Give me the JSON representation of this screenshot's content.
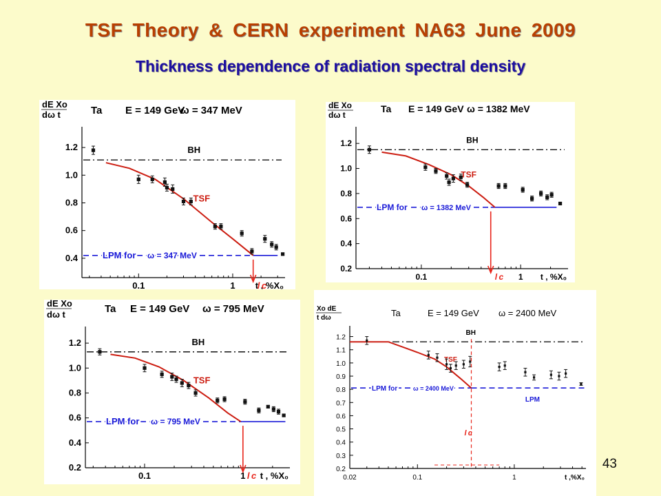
{
  "header": {
    "title": "TSF Theory  &   CERN  experiment   NA63  June 2009",
    "subtitle": "Thickness dependence of radiation spectral density"
  },
  "slide_number": "43",
  "colors": {
    "theory": "#cc1c10",
    "lpm": "#1a1ad8",
    "data": "#111111",
    "bh": "#111111",
    "marker": "#e8241a"
  },
  "chart_data": [
    {
      "type": "scatter",
      "panel": "top-left",
      "header_labels": [
        "Ta",
        "E = 149 GeV",
        "ω = 347 MeV"
      ],
      "ylabel": "dE Xo / dω t",
      "xlabel": "t , %X₀",
      "xscale": "log",
      "xlim": [
        0.025,
        3.6
      ],
      "ylim": [
        0.26,
        1.32
      ],
      "xticks": [
        0.1,
        1
      ],
      "xtick_labels": [
        "0.1",
        "1"
      ],
      "yticks": [
        0.4,
        0.6,
        0.8,
        1.0,
        1.2
      ],
      "ytick_labels": [
        "0.4",
        "0.6",
        "0.8",
        "1.0",
        "1.2"
      ],
      "bh_level": 1.11,
      "bh_label": "BH",
      "lpm": {
        "label": "LPM  for",
        "omega_text": "ω = 347 MeV",
        "level": 0.42
      },
      "tsf": {
        "label": "TSF",
        "points": [
          [
            0.045,
            1.09
          ],
          [
            0.08,
            1.05
          ],
          [
            0.15,
            0.97
          ],
          [
            0.3,
            0.83
          ],
          [
            0.6,
            0.66
          ],
          [
            1.0,
            0.54
          ],
          [
            1.65,
            0.42
          ]
        ],
        "flat_end": 3.0
      },
      "lc": {
        "label": "l c",
        "x": 1.65
      },
      "data": [
        {
          "x": 0.033,
          "y": 1.18,
          "err": 0.03
        },
        {
          "x": 0.1,
          "y": 0.97,
          "err": 0.03
        },
        {
          "x": 0.14,
          "y": 0.97,
          "err": 0.025
        },
        {
          "x": 0.19,
          "y": 0.95,
          "err": 0.03
        },
        {
          "x": 0.2,
          "y": 0.91,
          "err": 0.025
        },
        {
          "x": 0.23,
          "y": 0.9,
          "err": 0.03
        },
        {
          "x": 0.3,
          "y": 0.81,
          "err": 0.025
        },
        {
          "x": 0.36,
          "y": 0.81,
          "err": 0.025
        },
        {
          "x": 0.65,
          "y": 0.63,
          "err": 0.02
        },
        {
          "x": 0.75,
          "y": 0.63,
          "err": 0.02
        },
        {
          "x": 1.25,
          "y": 0.58,
          "err": 0.02
        },
        {
          "x": 1.6,
          "y": 0.45,
          "err": 0.02
        },
        {
          "x": 2.2,
          "y": 0.54,
          "err": 0.025
        },
        {
          "x": 2.6,
          "y": 0.5,
          "err": 0.02
        },
        {
          "x": 2.9,
          "y": 0.48,
          "err": 0.02
        },
        {
          "x": 3.4,
          "y": 0.43,
          "err": 0.008
        }
      ]
    },
    {
      "type": "scatter",
      "panel": "top-right",
      "header_labels": [
        "Ta",
        "E = 149 GeV",
        "ω = 1382 MeV"
      ],
      "ylabel": "dE Xo / dω t",
      "xlabel": "t , %X₀",
      "xscale": "log",
      "xlim": [
        0.022,
        3.0
      ],
      "ylim": [
        0.2,
        1.3
      ],
      "xticks": [
        0.1,
        1
      ],
      "xtick_labels": [
        "0.1",
        "1"
      ],
      "yticks": [
        0.2,
        0.4,
        0.6,
        0.8,
        1.0,
        1.2
      ],
      "ytick_labels": [
        "0.2",
        "0.4",
        "0.6",
        "0.8",
        "1.0",
        "1.2"
      ],
      "bh_level": 1.15,
      "bh_label": "BH",
      "lpm": {
        "label": "LPM  for",
        "omega_text": "ω = 1382 MeV",
        "level": 0.69
      },
      "tsf": {
        "label": "TSF",
        "points": [
          [
            0.04,
            1.13
          ],
          [
            0.07,
            1.1
          ],
          [
            0.12,
            1.03
          ],
          [
            0.2,
            0.95
          ],
          [
            0.3,
            0.86
          ],
          [
            0.42,
            0.77
          ],
          [
            0.55,
            0.69
          ]
        ],
        "flat_end": 2.3
      },
      "lc": {
        "label": "l c",
        "x": 0.5
      },
      "data": [
        {
          "x": 0.03,
          "y": 1.15,
          "err": 0.03
        },
        {
          "x": 0.11,
          "y": 1.01,
          "err": 0.025
        },
        {
          "x": 0.14,
          "y": 0.98,
          "err": 0.02
        },
        {
          "x": 0.18,
          "y": 0.94,
          "err": 0.025
        },
        {
          "x": 0.19,
          "y": 0.89,
          "err": 0.025
        },
        {
          "x": 0.21,
          "y": 0.92,
          "err": 0.03
        },
        {
          "x": 0.25,
          "y": 0.93,
          "err": 0.025
        },
        {
          "x": 0.29,
          "y": 0.87,
          "err": 0.02
        },
        {
          "x": 0.6,
          "y": 0.86,
          "err": 0.02
        },
        {
          "x": 0.7,
          "y": 0.86,
          "err": 0.02
        },
        {
          "x": 1.05,
          "y": 0.83,
          "err": 0.02
        },
        {
          "x": 1.3,
          "y": 0.76,
          "err": 0.02
        },
        {
          "x": 1.6,
          "y": 0.8,
          "err": 0.02
        },
        {
          "x": 1.85,
          "y": 0.77,
          "err": 0.02
        },
        {
          "x": 2.05,
          "y": 0.79,
          "err": 0.02
        },
        {
          "x": 2.5,
          "y": 0.72,
          "err": 0.008
        }
      ]
    },
    {
      "type": "scatter",
      "panel": "bottom-left",
      "header_labels": [
        "Ta",
        "E = 149 GeV",
        "ω = 795 MeV"
      ],
      "ylabel": "dE Xo / dω t",
      "xlabel": "t , %X₀",
      "xscale": "log",
      "xlim": [
        0.025,
        3.0
      ],
      "ylim": [
        0.2,
        1.3
      ],
      "xticks": [
        0.1,
        1
      ],
      "xtick_labels": [
        "0.1",
        "1"
      ],
      "yticks": [
        0.2,
        0.4,
        0.6,
        0.8,
        1.0,
        1.2
      ],
      "ytick_labels": [
        "0.2",
        "0.4",
        "0.6",
        "0.8",
        "1.0",
        "1.2"
      ],
      "bh_level": 1.13,
      "bh_label": "BH",
      "lpm": {
        "label": "LPM  for",
        "omega_text": "ω = 795 MeV",
        "level": 0.57
      },
      "tsf": {
        "label": "TSF",
        "points": [
          [
            0.045,
            1.11
          ],
          [
            0.08,
            1.08
          ],
          [
            0.14,
            1.01
          ],
          [
            0.25,
            0.9
          ],
          [
            0.45,
            0.76
          ],
          [
            0.7,
            0.64
          ],
          [
            0.95,
            0.57
          ]
        ],
        "flat_end": 2.7
      },
      "lc": {
        "label": "l c",
        "x": 1.0
      },
      "data": [
        {
          "x": 0.035,
          "y": 1.13,
          "err": 0.025
        },
        {
          "x": 0.1,
          "y": 1.0,
          "err": 0.03
        },
        {
          "x": 0.15,
          "y": 0.95,
          "err": 0.025
        },
        {
          "x": 0.19,
          "y": 0.93,
          "err": 0.03
        },
        {
          "x": 0.21,
          "y": 0.91,
          "err": 0.025
        },
        {
          "x": 0.24,
          "y": 0.88,
          "err": 0.03
        },
        {
          "x": 0.28,
          "y": 0.86,
          "err": 0.025
        },
        {
          "x": 0.33,
          "y": 0.8,
          "err": 0.025
        },
        {
          "x": 0.55,
          "y": 0.74,
          "err": 0.02
        },
        {
          "x": 0.65,
          "y": 0.75,
          "err": 0.02
        },
        {
          "x": 1.05,
          "y": 0.73,
          "err": 0.02
        },
        {
          "x": 1.45,
          "y": 0.66,
          "err": 0.02
        },
        {
          "x": 1.8,
          "y": 0.69,
          "err": 0.01
        },
        {
          "x": 2.05,
          "y": 0.67,
          "err": 0.02
        },
        {
          "x": 2.3,
          "y": 0.65,
          "err": 0.02
        },
        {
          "x": 2.6,
          "y": 0.62,
          "err": 0.01
        }
      ]
    },
    {
      "type": "scatter",
      "panel": "bottom-right",
      "header_labels": [
        "Ta",
        "E = 149 GeV",
        "ω = 2400 MeV"
      ],
      "ylabel": "Xo dE / t dω",
      "xlabel": "t ,%X₀",
      "xscale": "log",
      "xlim": [
        0.02,
        5.5
      ],
      "ylim": [
        0.2,
        1.25
      ],
      "xticks": [
        0.02,
        0.1,
        1
      ],
      "xtick_labels": [
        "0.02",
        "0.1",
        "1"
      ],
      "yticks": [
        0.2,
        0.3,
        0.4,
        0.5,
        0.6,
        0.7,
        0.8,
        0.9,
        1.0,
        1.1,
        1.2
      ],
      "ytick_labels": [
        "0.2",
        "0.3",
        "0.4",
        "0.5",
        "0.6",
        "0.7",
        "0.8",
        "0.9",
        "1.0",
        "1.1",
        "1.2"
      ],
      "bh_level": 1.16,
      "bh_label": "BH",
      "lpm": {
        "label": "LPM  for",
        "omega_text": "ω = 2400 MeV",
        "level": 0.81,
        "extra_label": "LPM"
      },
      "tsf": {
        "label": "TSF",
        "points": [
          [
            0.02,
            1.16
          ],
          [
            0.05,
            1.16
          ],
          [
            0.1,
            1.08
          ],
          [
            0.15,
            1.03
          ],
          [
            0.2,
            0.97
          ],
          [
            0.28,
            0.88
          ],
          [
            0.36,
            0.81
          ]
        ],
        "flat_end": 5.3
      },
      "lc": {
        "label": "l c",
        "x": 0.36
      },
      "data": [
        {
          "x": 0.03,
          "y": 1.17,
          "err": 0.03
        },
        {
          "x": 0.13,
          "y": 1.06,
          "err": 0.03
        },
        {
          "x": 0.16,
          "y": 1.04,
          "err": 0.03
        },
        {
          "x": 0.2,
          "y": 0.99,
          "err": 0.04
        },
        {
          "x": 0.22,
          "y": 0.96,
          "err": 0.03
        },
        {
          "x": 0.25,
          "y": 0.98,
          "err": 0.03
        },
        {
          "x": 0.3,
          "y": 0.99,
          "err": 0.03
        },
        {
          "x": 0.35,
          "y": 1.01,
          "err": 0.04
        },
        {
          "x": 0.7,
          "y": 0.97,
          "err": 0.03
        },
        {
          "x": 0.8,
          "y": 0.98,
          "err": 0.03
        },
        {
          "x": 1.3,
          "y": 0.93,
          "err": 0.03
        },
        {
          "x": 1.6,
          "y": 0.89,
          "err": 0.02
        },
        {
          "x": 2.4,
          "y": 0.91,
          "err": 0.03
        },
        {
          "x": 2.9,
          "y": 0.9,
          "err": 0.03
        },
        {
          "x": 3.4,
          "y": 0.92,
          "err": 0.03
        },
        {
          "x": 4.9,
          "y": 0.84,
          "err": 0.01
        }
      ]
    }
  ]
}
